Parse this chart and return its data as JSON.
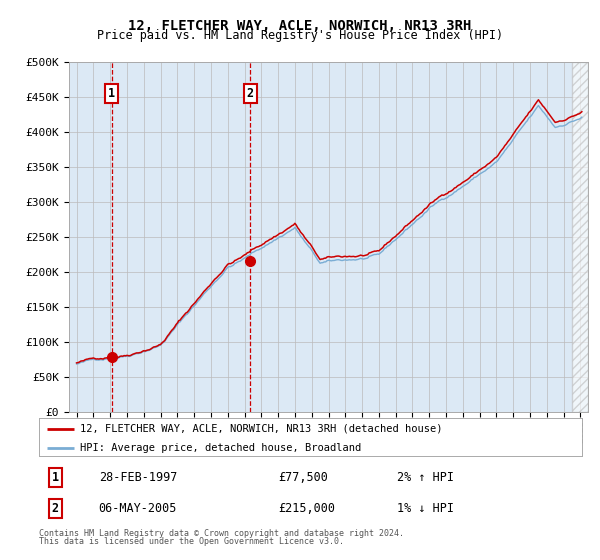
{
  "title": "12, FLETCHER WAY, ACLE, NORWICH, NR13 3RH",
  "subtitle": "Price paid vs. HM Land Registry's House Price Index (HPI)",
  "ylim": [
    0,
    500000
  ],
  "yticks": [
    0,
    50000,
    100000,
    150000,
    200000,
    250000,
    300000,
    350000,
    400000,
    450000,
    500000
  ],
  "ytick_labels": [
    "£0",
    "£50K",
    "£100K",
    "£150K",
    "£200K",
    "£250K",
    "£300K",
    "£350K",
    "£400K",
    "£450K",
    "£500K"
  ],
  "hpi_line_color": "#7aadd4",
  "price_line_color": "#cc0000",
  "idx1": 25,
  "point1_value": 77500,
  "idx2": 124,
  "point2_value": 215000,
  "legend1": "12, FLETCHER WAY, ACLE, NORWICH, NR13 3RH (detached house)",
  "legend2": "HPI: Average price, detached house, Broadland",
  "row1_date": "28-FEB-1997",
  "row1_price": "£77,500",
  "row1_hpi": "2% ↑ HPI",
  "row2_date": "06-MAY-2005",
  "row2_price": "£215,000",
  "row2_hpi": "1% ↓ HPI",
  "footer1": "Contains HM Land Registry data © Crown copyright and database right 2024.",
  "footer2": "This data is licensed under the Open Government Licence v3.0.",
  "bg_color": "#dce9f5",
  "grid_color": "#bbbbbb",
  "vline_color": "#cc0000",
  "box_edge_color": "#cc0000",
  "hatch_start": 2024.5,
  "xlim_left": 1994.55,
  "xlim_right": 2025.45
}
